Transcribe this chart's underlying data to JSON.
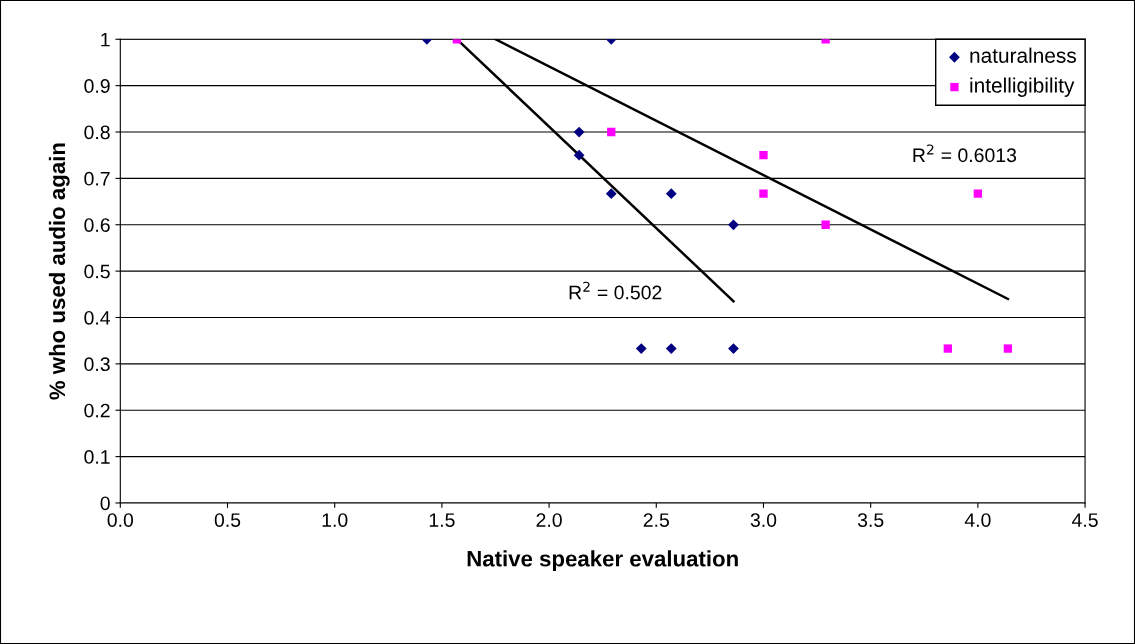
{
  "chart_data": {
    "type": "scatter",
    "xlabel": "Native speaker evaluation",
    "ylabel": "% who used audio again",
    "xlim": [
      0,
      4.5
    ],
    "xticks": [
      {
        "value": 0,
        "label": "0.0"
      },
      {
        "value": 0.5,
        "label": "0.5"
      },
      {
        "value": 1,
        "label": "1.0"
      },
      {
        "value": 1.5,
        "label": "1.5"
      },
      {
        "value": 2,
        "label": "2.0"
      },
      {
        "value": 2.5,
        "label": "2.5"
      },
      {
        "value": 3,
        "label": "3.0"
      },
      {
        "value": 3.5,
        "label": "3.5"
      },
      {
        "value": 4,
        "label": "4.0"
      },
      {
        "value": 4.5,
        "label": "4.5"
      }
    ],
    "ylim": [
      0,
      1
    ],
    "yticks": [
      0,
      0.1,
      0.2,
      0.3,
      0.4,
      0.5,
      0.6,
      0.7,
      0.8,
      0.9,
      1
    ],
    "grid": "y",
    "legend": "top right",
    "series": [
      {
        "name": "naturalness",
        "color": "#000080",
        "marker": "diamond",
        "x": [
          1.43,
          2.29,
          2.14,
          2.14,
          2.29,
          2.57,
          2.86,
          2.43,
          2.57,
          2.86
        ],
        "values": [
          1,
          1,
          0.8,
          0.75,
          0.667,
          0.667,
          0.6,
          0.333,
          0.333,
          0.333
        ]
      },
      {
        "name": "intelligibility",
        "color": "#ff00ff",
        "marker": "square",
        "x": [
          1.57,
          2.29,
          3.0,
          3.0,
          3.29,
          3.29,
          4.0,
          3.86,
          4.14
        ],
        "values": [
          1,
          0.8,
          0.75,
          0.667,
          1,
          0.6,
          0.667,
          0.333,
          0.333
        ]
      },
      {
        "type": "line",
        "color": "#000000",
        "x": [
          1.57,
          2.86
        ],
        "values": [
          1,
          0.435
        ]
      },
      {
        "type": "line",
        "color": "#000000",
        "x": [
          1.75,
          4.14
        ],
        "values": [
          1,
          0.44
        ]
      }
    ],
    "annotations": [
      "R$^{2}$ = 0.6013",
      "R$^{2}$ = 0.502"
    ]
  }
}
